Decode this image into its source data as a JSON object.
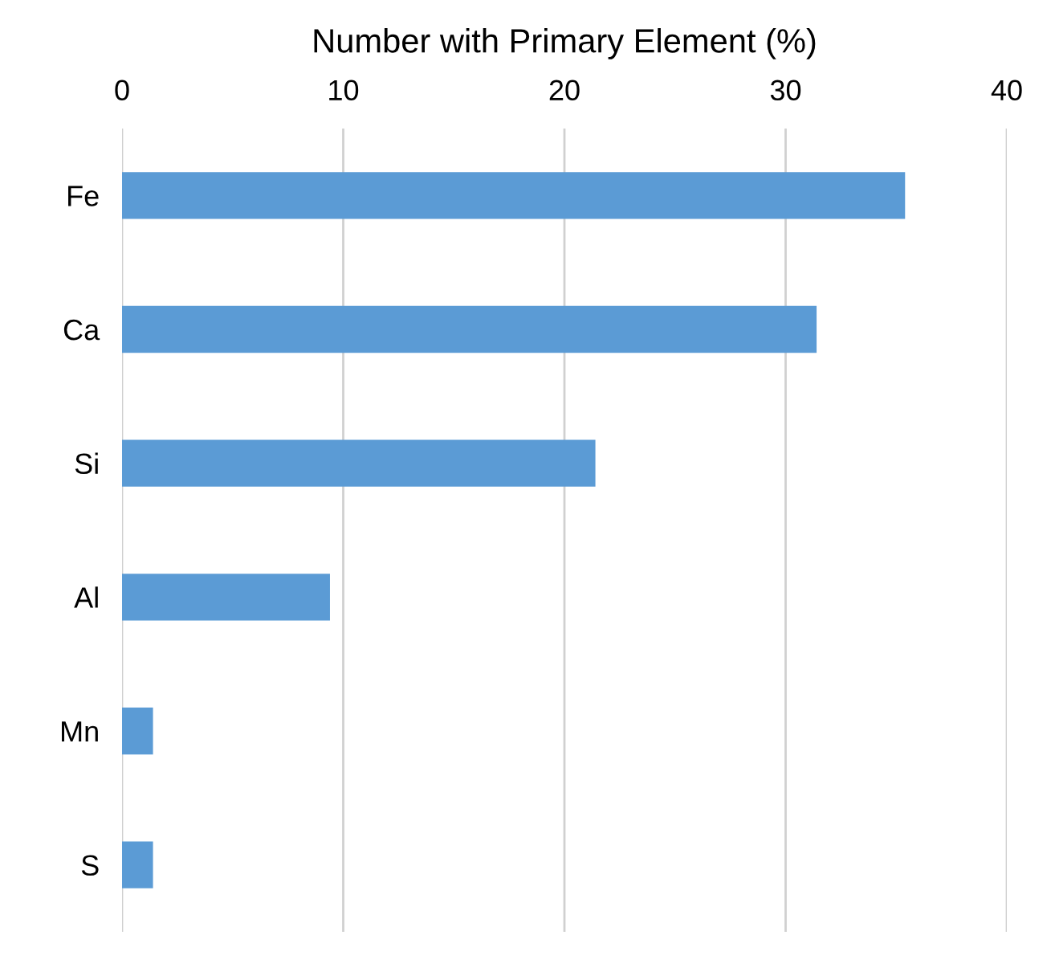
{
  "chart_data": {
    "type": "bar",
    "orientation": "horizontal",
    "xlabel": "Number with Primary Element (%)",
    "categories": [
      "Fe",
      "Ca",
      "Si",
      "Al",
      "Mn",
      "S"
    ],
    "values": [
      35.4,
      31.4,
      21.4,
      9.4,
      1.4,
      1.4
    ],
    "color": "#5b9bd5",
    "xlim": [
      0,
      40
    ],
    "xticks": [
      0,
      10,
      20,
      30,
      40
    ],
    "grid": "x",
    "legend": false
  }
}
